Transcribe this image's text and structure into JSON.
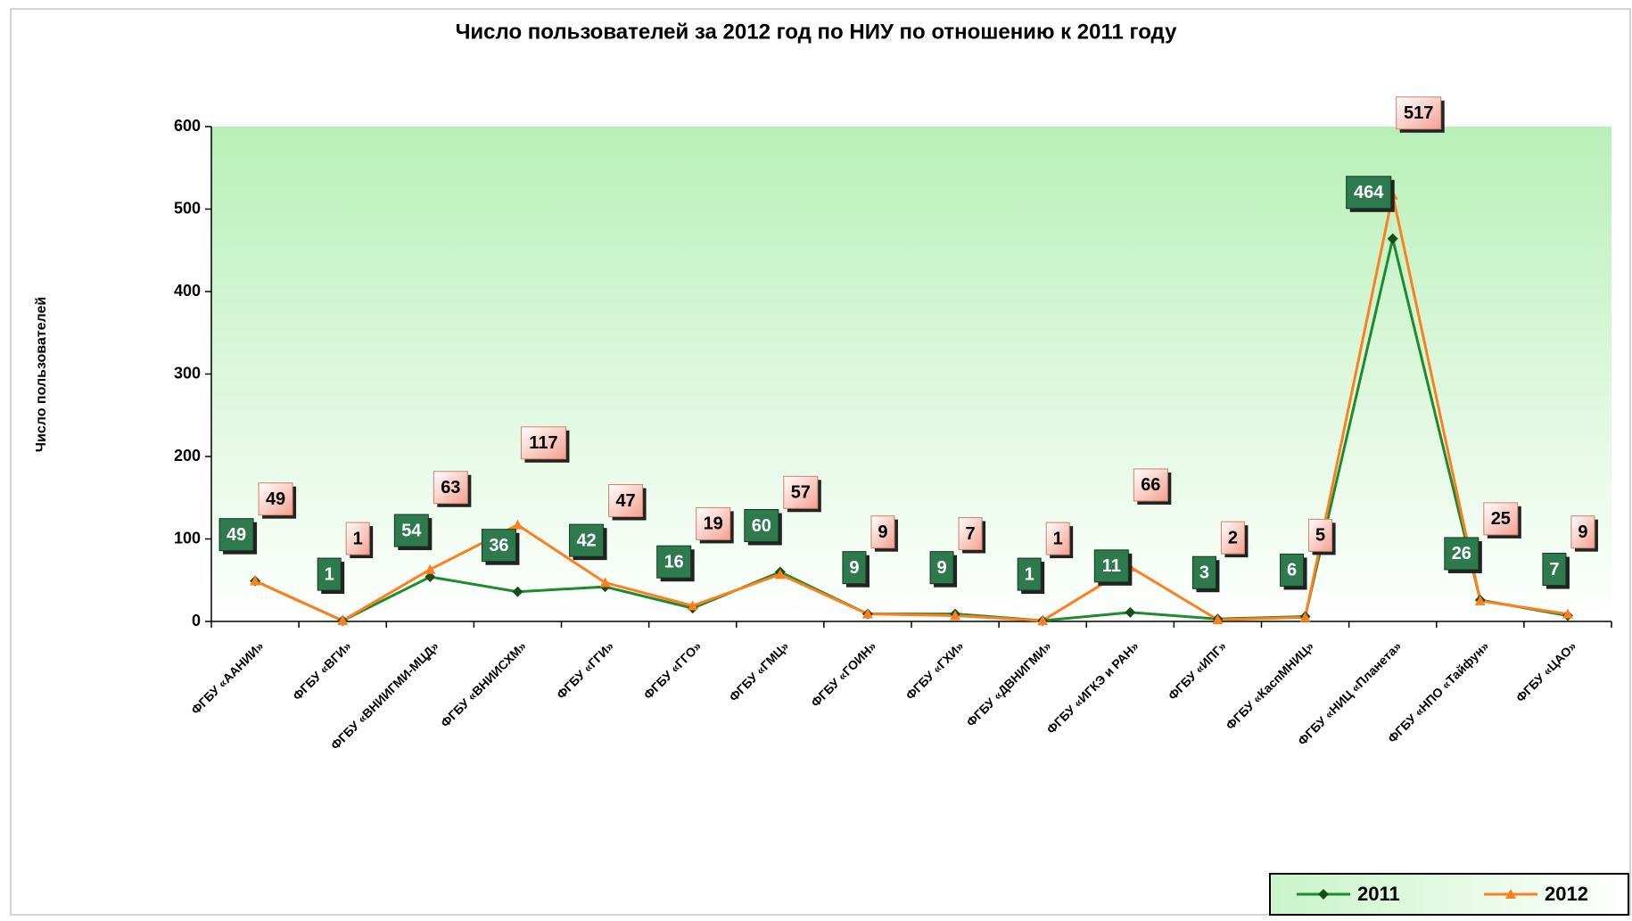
{
  "chart_data": {
    "type": "line",
    "title": "Число пользователей за 2012 год по НИУ по отношению к 2011 году",
    "y_label": "Число пользователей",
    "categories": [
      "ФГБУ «ААНИИ»",
      "ФГБУ «ВГИ»",
      "ФГБУ «ВНИИГМИ-МЦД»",
      "ФГБУ «ВНИИСХМ»",
      "ФГБУ «ГГИ»",
      "ФГБУ «ГГО»",
      "ФГБУ «ГМЦ»",
      "ФГБУ «ГОИН»",
      "ФГБУ «ГХИ»",
      "ФГБУ «ДВНИГМИ»",
      "ФГБУ «ИГКЭ и РАН»",
      "ФГБУ «ИПГ»",
      "ФГБУ «КаспМНИЦ»",
      "ФГБУ «НИЦ «Планета»",
      "ФГБУ «НПО «Тайфун»",
      "ФГБУ «ЦАО»"
    ],
    "series": [
      {
        "name": "2011",
        "color": "#1e8c2e",
        "marker": "diamond",
        "values": [
          49,
          1,
          54,
          36,
          42,
          16,
          60,
          9,
          9,
          1,
          11,
          3,
          6,
          464,
          26,
          7
        ]
      },
      {
        "name": "2012",
        "color": "#ff7f1e",
        "marker": "triangle",
        "values": [
          49,
          1,
          63,
          117,
          47,
          19,
          57,
          9,
          7,
          1,
          66,
          2,
          5,
          517,
          25,
          9
        ]
      }
    ],
    "ylim": [
      0,
      600
    ],
    "yticks": [
      0,
      100,
      200,
      300,
      400,
      500,
      600
    ],
    "legend": "bottom-right"
  }
}
